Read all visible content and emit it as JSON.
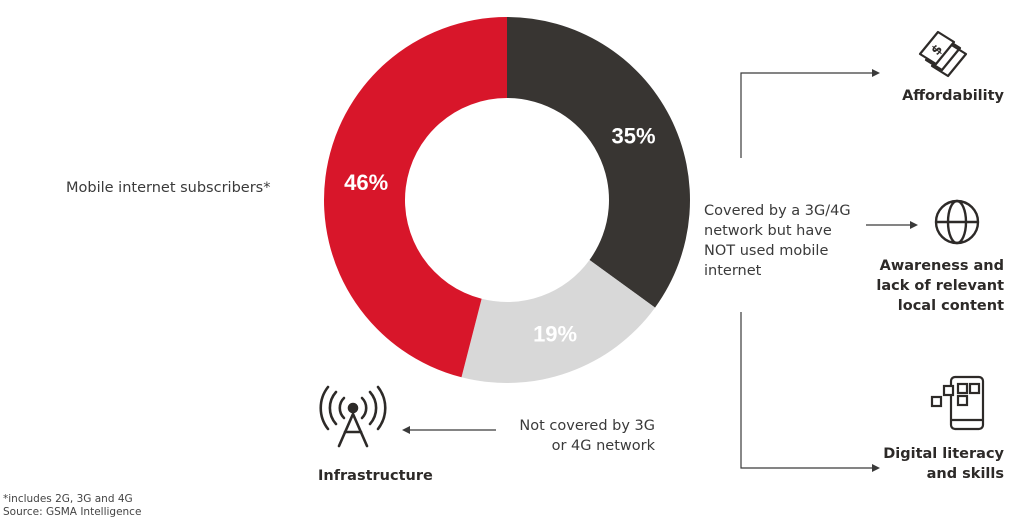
{
  "chart_data": {
    "type": "pie",
    "donut": true,
    "values": [
      35,
      19,
      46
    ],
    "labels": [
      "35%",
      "19%",
      "46%"
    ],
    "colors": [
      "#383532",
      "#d8d8d8",
      "#d8162a"
    ],
    "label_colors": [
      "#ffffff",
      "#ffffff",
      "#ffffff"
    ]
  },
  "labels": {
    "subscribers": "Mobile internet subscribers*",
    "covered_lines": [
      "Covered by a 3G/4G",
      "network but have",
      "NOT used mobile",
      "internet"
    ],
    "not_covered_lines": [
      "Not covered by 3G",
      "or 4G network"
    ]
  },
  "barriers": {
    "affordability": "Affordability",
    "awareness_lines": [
      "Awareness and",
      "lack of relevant",
      "local content"
    ],
    "digital_lines": [
      "Digital literacy",
      "and skills"
    ],
    "infrastructure": "Infrastructure"
  },
  "icons": {
    "affordability": "money-bills-icon",
    "awareness": "globe-icon",
    "digital": "smartphone-apps-icon",
    "infrastructure": "radio-tower-icon"
  },
  "footnotes": {
    "note": "*includes 2G, 3G and 4G",
    "source": "Source: GSMA Intelligence"
  }
}
